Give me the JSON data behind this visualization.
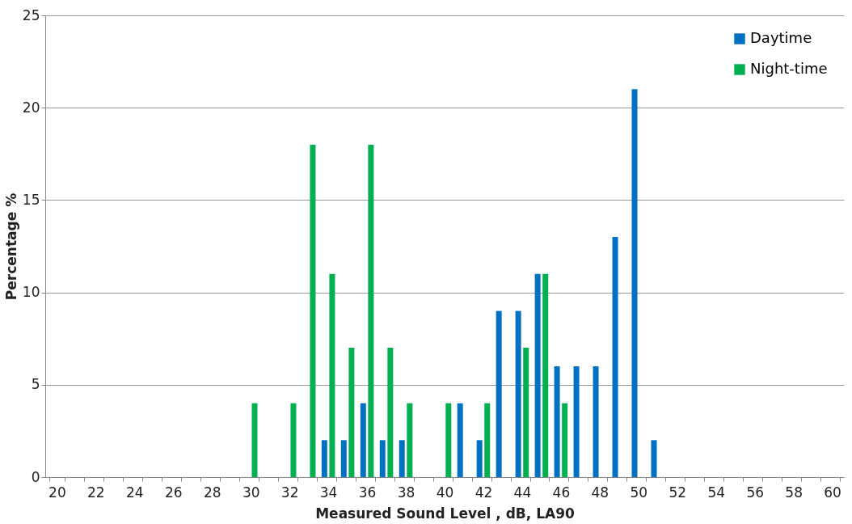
{
  "chart_data": {
    "type": "bar",
    "xlabel": "Measured Sound Level , dB, LA90",
    "ylabel": "Percentage %",
    "categories": [
      "20",
      null,
      "22",
      null,
      "24",
      null,
      "26",
      null,
      "28",
      null,
      "30",
      null,
      "32",
      null,
      "34",
      null,
      "36",
      null,
      "38",
      null,
      "40",
      null,
      "42",
      null,
      "44",
      null,
      "46",
      null,
      "48",
      null,
      "50",
      null,
      "52",
      null,
      "54",
      null,
      "56",
      null,
      "58",
      null,
      "60"
    ],
    "series": [
      {
        "name": "Daytime",
        "color": "#0070c0",
        "values": [
          null,
          null,
          null,
          null,
          null,
          null,
          null,
          null,
          null,
          null,
          null,
          null,
          null,
          null,
          2,
          2,
          4,
          2,
          2,
          null,
          null,
          4,
          2,
          9,
          9,
          11,
          6,
          6,
          6,
          13,
          21,
          2,
          null,
          null,
          null,
          null,
          null,
          null,
          null,
          null,
          null
        ]
      },
      {
        "name": "Night-time",
        "color": "#00b050",
        "values": [
          null,
          null,
          null,
          null,
          null,
          null,
          null,
          null,
          null,
          null,
          4,
          null,
          4,
          18,
          11,
          7,
          18,
          7,
          4,
          null,
          4,
          null,
          4,
          null,
          7,
          11,
          4,
          null,
          null,
          null,
          null,
          null,
          null,
          null,
          null,
          null,
          null,
          null,
          null,
          null,
          null
        ]
      }
    ],
    "ylim": [
      0,
      25
    ],
    "yticks": [
      0,
      5,
      10,
      15,
      20,
      25
    ],
    "grid": "y",
    "legend": "top right"
  }
}
